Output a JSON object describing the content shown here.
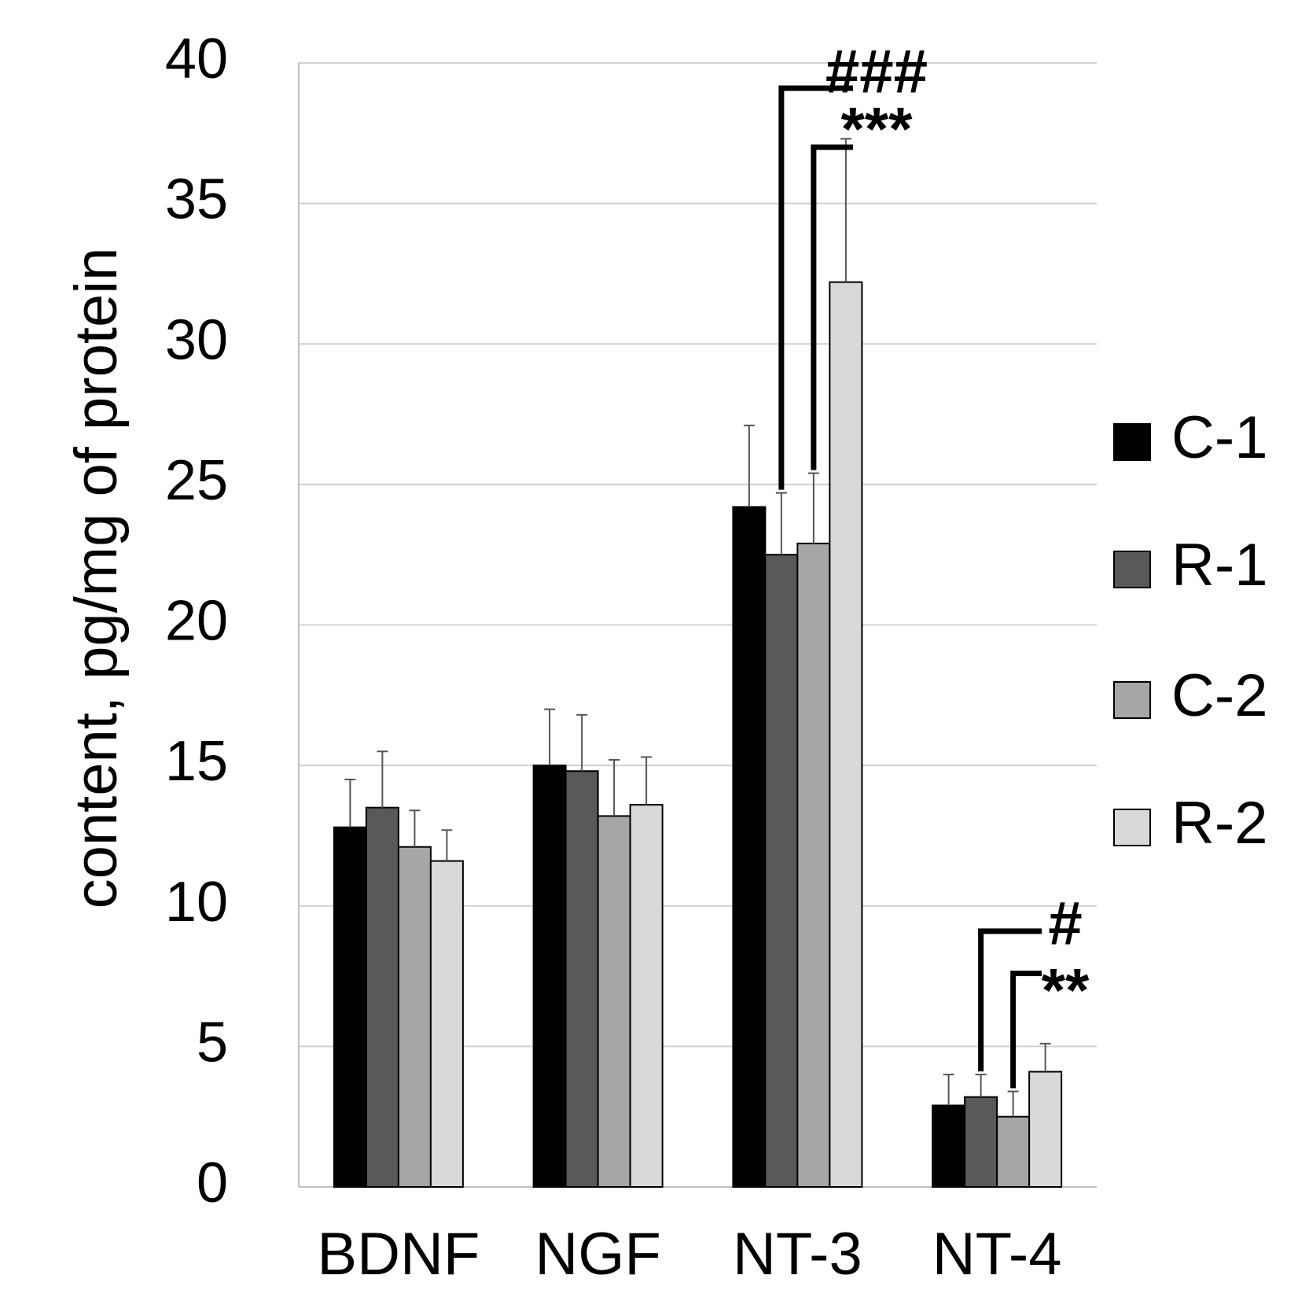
{
  "chart_data": {
    "type": "bar",
    "ylabel": "content, pg/mg of protein",
    "ylim": [
      0,
      40
    ],
    "yticks": [
      0,
      5,
      10,
      15,
      20,
      25,
      30,
      35,
      40
    ],
    "grid": true,
    "legend_position": "right",
    "categories": [
      "BDNF",
      "NGF",
      "NT-3",
      "NT-4"
    ],
    "series": [
      {
        "name": "C-1",
        "color": "#000000",
        "values": [
          12.8,
          15.0,
          24.2,
          2.9
        ],
        "errors": [
          1.7,
          2.0,
          2.9,
          1.1
        ]
      },
      {
        "name": "R-1",
        "color": "#595959",
        "values": [
          13.5,
          14.8,
          22.5,
          3.2
        ],
        "errors": [
          2.0,
          2.0,
          2.2,
          0.8
        ]
      },
      {
        "name": "C-2",
        "color": "#a6a6a6",
        "values": [
          12.1,
          13.2,
          22.9,
          2.5
        ],
        "errors": [
          1.3,
          2.0,
          2.5,
          0.9
        ]
      },
      {
        "name": "R-2",
        "color": "#d9d9d9",
        "values": [
          11.6,
          13.6,
          32.2,
          4.1
        ],
        "errors": [
          1.1,
          1.7,
          5.1,
          1.0
        ]
      }
    ],
    "annotations": [
      {
        "category": "NT-3",
        "label": "###",
        "from_series": "R-1"
      },
      {
        "category": "NT-3",
        "label": "***",
        "from_series": "C-2"
      },
      {
        "category": "NT-4",
        "label": "#",
        "from_series": "R-1"
      },
      {
        "category": "NT-4",
        "label": "**",
        "from_series": "C-2"
      }
    ]
  }
}
